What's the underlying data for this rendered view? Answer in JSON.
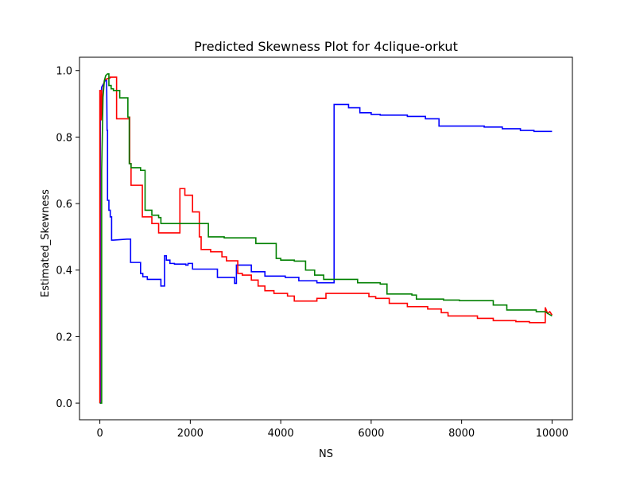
{
  "chart_data": {
    "type": "line",
    "title": "Predicted Skewness Plot for 4clique-orkut",
    "xlabel": "NS",
    "ylabel": "Estimated_Skewness",
    "xlim": [
      -450,
      10450
    ],
    "ylim": [
      -0.05,
      1.04
    ],
    "xticks": [
      0,
      2000,
      4000,
      6000,
      8000,
      10000
    ],
    "yticks": [
      0.0,
      0.2,
      0.4,
      0.6,
      0.8,
      1.0
    ],
    "xtick_labels": [
      "0",
      "2000",
      "4000",
      "6000",
      "8000",
      "10000"
    ],
    "ytick_labels": [
      "0.0",
      "0.2",
      "0.4",
      "0.6",
      "0.8",
      "1.0"
    ],
    "grid": false,
    "series": [
      {
        "name": "blue",
        "color": "#0000ff",
        "points": [
          [
            0,
            0
          ],
          [
            10,
            0
          ],
          [
            10,
            0.9
          ],
          [
            40,
            0.95
          ],
          [
            80,
            0.96
          ],
          [
            120,
            0.97
          ],
          [
            150,
            0.97
          ],
          [
            160,
            0.82
          ],
          [
            170,
            0.82
          ],
          [
            170,
            0.61
          ],
          [
            200,
            0.61
          ],
          [
            200,
            0.58
          ],
          [
            230,
            0.58
          ],
          [
            230,
            0.56
          ],
          [
            260,
            0.56
          ],
          [
            260,
            0.49
          ],
          [
            300,
            0.49
          ],
          [
            600,
            0.493
          ],
          [
            680,
            0.493
          ],
          [
            680,
            0.423
          ],
          [
            900,
            0.423
          ],
          [
            900,
            0.39
          ],
          [
            950,
            0.39
          ],
          [
            950,
            0.38
          ],
          [
            1050,
            0.38
          ],
          [
            1050,
            0.372
          ],
          [
            1350,
            0.372
          ],
          [
            1350,
            0.352
          ],
          [
            1430,
            0.352
          ],
          [
            1430,
            0.443
          ],
          [
            1470,
            0.443
          ],
          [
            1470,
            0.43
          ],
          [
            1550,
            0.43
          ],
          [
            1550,
            0.42
          ],
          [
            1650,
            0.42
          ],
          [
            1650,
            0.418
          ],
          [
            1900,
            0.418
          ],
          [
            1900,
            0.415
          ],
          [
            1950,
            0.415
          ],
          [
            1950,
            0.42
          ],
          [
            2050,
            0.42
          ],
          [
            2050,
            0.403
          ],
          [
            2600,
            0.403
          ],
          [
            2600,
            0.378
          ],
          [
            2980,
            0.378
          ],
          [
            2980,
            0.36
          ],
          [
            3020,
            0.36
          ],
          [
            3020,
            0.415
          ],
          [
            3350,
            0.415
          ],
          [
            3350,
            0.395
          ],
          [
            3650,
            0.395
          ],
          [
            3650,
            0.382
          ],
          [
            4100,
            0.382
          ],
          [
            4100,
            0.378
          ],
          [
            4400,
            0.378
          ],
          [
            4400,
            0.368
          ],
          [
            4800,
            0.368
          ],
          [
            4800,
            0.362
          ],
          [
            5180,
            0.362
          ],
          [
            5180,
            0.898
          ],
          [
            5500,
            0.898
          ],
          [
            5500,
            0.888
          ],
          [
            5750,
            0.888
          ],
          [
            5750,
            0.873
          ],
          [
            6000,
            0.873
          ],
          [
            6000,
            0.868
          ],
          [
            6200,
            0.868
          ],
          [
            6200,
            0.866
          ],
          [
            6800,
            0.866
          ],
          [
            6800,
            0.862
          ],
          [
            7200,
            0.862
          ],
          [
            7200,
            0.855
          ],
          [
            7500,
            0.855
          ],
          [
            7500,
            0.833
          ],
          [
            8500,
            0.833
          ],
          [
            8500,
            0.83
          ],
          [
            8900,
            0.83
          ],
          [
            8900,
            0.825
          ],
          [
            9300,
            0.825
          ],
          [
            9300,
            0.82
          ],
          [
            9600,
            0.82
          ],
          [
            9600,
            0.817
          ],
          [
            10000,
            0.817
          ]
        ]
      },
      {
        "name": "red",
        "color": "#ff0000",
        "points": [
          [
            0,
            0
          ],
          [
            0,
            0.94
          ],
          [
            30,
            0.94
          ],
          [
            30,
            0.85
          ],
          [
            60,
            0.93
          ],
          [
            100,
            0.97
          ],
          [
            150,
            0.975
          ],
          [
            230,
            0.978
          ],
          [
            230,
            0.98
          ],
          [
            370,
            0.98
          ],
          [
            370,
            0.855
          ],
          [
            650,
            0.855
          ],
          [
            650,
            0.86
          ],
          [
            660,
            0.86
          ],
          [
            660,
            0.72
          ],
          [
            690,
            0.72
          ],
          [
            690,
            0.655
          ],
          [
            940,
            0.655
          ],
          [
            940,
            0.56
          ],
          [
            1150,
            0.56
          ],
          [
            1150,
            0.54
          ],
          [
            1300,
            0.54
          ],
          [
            1300,
            0.512
          ],
          [
            1770,
            0.512
          ],
          [
            1770,
            0.645
          ],
          [
            1880,
            0.645
          ],
          [
            1880,
            0.625
          ],
          [
            2050,
            0.625
          ],
          [
            2050,
            0.575
          ],
          [
            2200,
            0.575
          ],
          [
            2200,
            0.5
          ],
          [
            2240,
            0.5
          ],
          [
            2240,
            0.462
          ],
          [
            2450,
            0.462
          ],
          [
            2450,
            0.455
          ],
          [
            2700,
            0.455
          ],
          [
            2700,
            0.44
          ],
          [
            2800,
            0.44
          ],
          [
            2800,
            0.428
          ],
          [
            3050,
            0.428
          ],
          [
            3050,
            0.39
          ],
          [
            3150,
            0.39
          ],
          [
            3150,
            0.385
          ],
          [
            3350,
            0.385
          ],
          [
            3350,
            0.37
          ],
          [
            3500,
            0.37
          ],
          [
            3500,
            0.352
          ],
          [
            3650,
            0.352
          ],
          [
            3650,
            0.338
          ],
          [
            3850,
            0.338
          ],
          [
            3850,
            0.33
          ],
          [
            4150,
            0.33
          ],
          [
            4150,
            0.322
          ],
          [
            4300,
            0.322
          ],
          [
            4300,
            0.307
          ],
          [
            4800,
            0.307
          ],
          [
            4800,
            0.315
          ],
          [
            5000,
            0.315
          ],
          [
            5000,
            0.33
          ],
          [
            5950,
            0.33
          ],
          [
            5950,
            0.32
          ],
          [
            6100,
            0.32
          ],
          [
            6100,
            0.315
          ],
          [
            6400,
            0.315
          ],
          [
            6400,
            0.3
          ],
          [
            6800,
            0.3
          ],
          [
            6800,
            0.29
          ],
          [
            7250,
            0.29
          ],
          [
            7250,
            0.283
          ],
          [
            7550,
            0.283
          ],
          [
            7550,
            0.272
          ],
          [
            7700,
            0.272
          ],
          [
            7700,
            0.262
          ],
          [
            8350,
            0.262
          ],
          [
            8350,
            0.255
          ],
          [
            8700,
            0.255
          ],
          [
            8700,
            0.248
          ],
          [
            9200,
            0.248
          ],
          [
            9200,
            0.245
          ],
          [
            9500,
            0.245
          ],
          [
            9500,
            0.242
          ],
          [
            9850,
            0.242
          ],
          [
            9850,
            0.288
          ],
          [
            9900,
            0.27
          ],
          [
            9950,
            0.275
          ],
          [
            10000,
            0.265
          ]
        ]
      },
      {
        "name": "green",
        "color": "#008000",
        "points": [
          [
            0,
            0
          ],
          [
            40,
            0
          ],
          [
            40,
            0.7
          ],
          [
            70,
            0.92
          ],
          [
            100,
            0.97
          ],
          [
            130,
            0.985
          ],
          [
            170,
            0.99
          ],
          [
            200,
            0.99
          ],
          [
            200,
            0.955
          ],
          [
            250,
            0.955
          ],
          [
            250,
            0.945
          ],
          [
            300,
            0.945
          ],
          [
            300,
            0.94
          ],
          [
            440,
            0.94
          ],
          [
            440,
            0.918
          ],
          [
            620,
            0.918
          ],
          [
            620,
            0.86
          ],
          [
            650,
            0.86
          ],
          [
            650,
            0.72
          ],
          [
            690,
            0.72
          ],
          [
            690,
            0.708
          ],
          [
            900,
            0.708
          ],
          [
            900,
            0.7
          ],
          [
            1000,
            0.7
          ],
          [
            1000,
            0.58
          ],
          [
            1150,
            0.58
          ],
          [
            1150,
            0.565
          ],
          [
            1300,
            0.565
          ],
          [
            1300,
            0.558
          ],
          [
            1350,
            0.558
          ],
          [
            1350,
            0.54
          ],
          [
            2400,
            0.54
          ],
          [
            2400,
            0.5
          ],
          [
            2750,
            0.5
          ],
          [
            2750,
            0.497
          ],
          [
            3450,
            0.497
          ],
          [
            3450,
            0.48
          ],
          [
            3900,
            0.48
          ],
          [
            3900,
            0.435
          ],
          [
            4000,
            0.435
          ],
          [
            4000,
            0.43
          ],
          [
            4300,
            0.43
          ],
          [
            4300,
            0.427
          ],
          [
            4550,
            0.427
          ],
          [
            4550,
            0.4
          ],
          [
            4750,
            0.4
          ],
          [
            4750,
            0.385
          ],
          [
            4950,
            0.385
          ],
          [
            4950,
            0.372
          ],
          [
            5700,
            0.372
          ],
          [
            5700,
            0.362
          ],
          [
            6200,
            0.362
          ],
          [
            6200,
            0.358
          ],
          [
            6350,
            0.358
          ],
          [
            6350,
            0.328
          ],
          [
            6900,
            0.328
          ],
          [
            6900,
            0.325
          ],
          [
            7000,
            0.325
          ],
          [
            7000,
            0.313
          ],
          [
            7600,
            0.313
          ],
          [
            7600,
            0.31
          ],
          [
            7950,
            0.31
          ],
          [
            7950,
            0.308
          ],
          [
            8700,
            0.308
          ],
          [
            8700,
            0.295
          ],
          [
            9000,
            0.295
          ],
          [
            9000,
            0.28
          ],
          [
            9650,
            0.28
          ],
          [
            9650,
            0.275
          ],
          [
            9850,
            0.275
          ],
          [
            9900,
            0.27
          ],
          [
            10000,
            0.262
          ]
        ]
      }
    ]
  }
}
